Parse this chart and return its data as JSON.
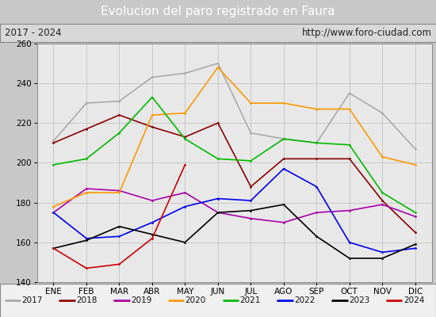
{
  "title": "Evolucion del paro registrado en Faura",
  "subtitle_left": "2017 - 2024",
  "subtitle_right": "http://www.foro-ciudad.com",
  "months": [
    "ENE",
    "FEB",
    "MAR",
    "ABR",
    "MAY",
    "JUN",
    "JUL",
    "AGO",
    "SEP",
    "OCT",
    "NOV",
    "DIC"
  ],
  "ylim": [
    140,
    260
  ],
  "yticks": [
    140,
    160,
    180,
    200,
    220,
    240,
    260
  ],
  "series": {
    "2017": {
      "color": "#aaaaaa",
      "values": [
        211,
        230,
        231,
        243,
        245,
        250,
        215,
        212,
        210,
        235,
        225,
        207
      ]
    },
    "2018": {
      "color": "#8b0000",
      "values": [
        210,
        217,
        224,
        218,
        213,
        220,
        188,
        202,
        202,
        202,
        181,
        165
      ]
    },
    "2019": {
      "color": "#aa00aa",
      "values": [
        175,
        187,
        186,
        181,
        185,
        175,
        172,
        170,
        175,
        176,
        179,
        173
      ]
    },
    "2020": {
      "color": "#ff9900",
      "values": [
        178,
        185,
        185,
        224,
        225,
        248,
        230,
        230,
        227,
        227,
        203,
        199
      ]
    },
    "2021": {
      "color": "#00bb00",
      "values": [
        199,
        202,
        215,
        233,
        212,
        202,
        201,
        212,
        210,
        209,
        185,
        175
      ]
    },
    "2022": {
      "color": "#0000ee",
      "values": [
        175,
        162,
        163,
        170,
        178,
        182,
        181,
        197,
        188,
        160,
        155,
        157
      ]
    },
    "2023": {
      "color": "#000000",
      "values": [
        157,
        161,
        168,
        164,
        160,
        175,
        176,
        179,
        163,
        152,
        152,
        159
      ]
    },
    "2024": {
      "color": "#cc0000",
      "values": [
        157,
        147,
        149,
        162,
        199,
        null,
        null,
        null,
        null,
        null,
        null,
        null
      ]
    }
  },
  "plot_bg_color": "#e8e8e8",
  "title_bg_color": "#4488cc",
  "title_color": "white",
  "subtitle_bg_color": "#d8d8d8",
  "grid_color": "#bbbbbb",
  "legend_bg": "#f0f0f0",
  "outer_bg": "#c8c8c8"
}
